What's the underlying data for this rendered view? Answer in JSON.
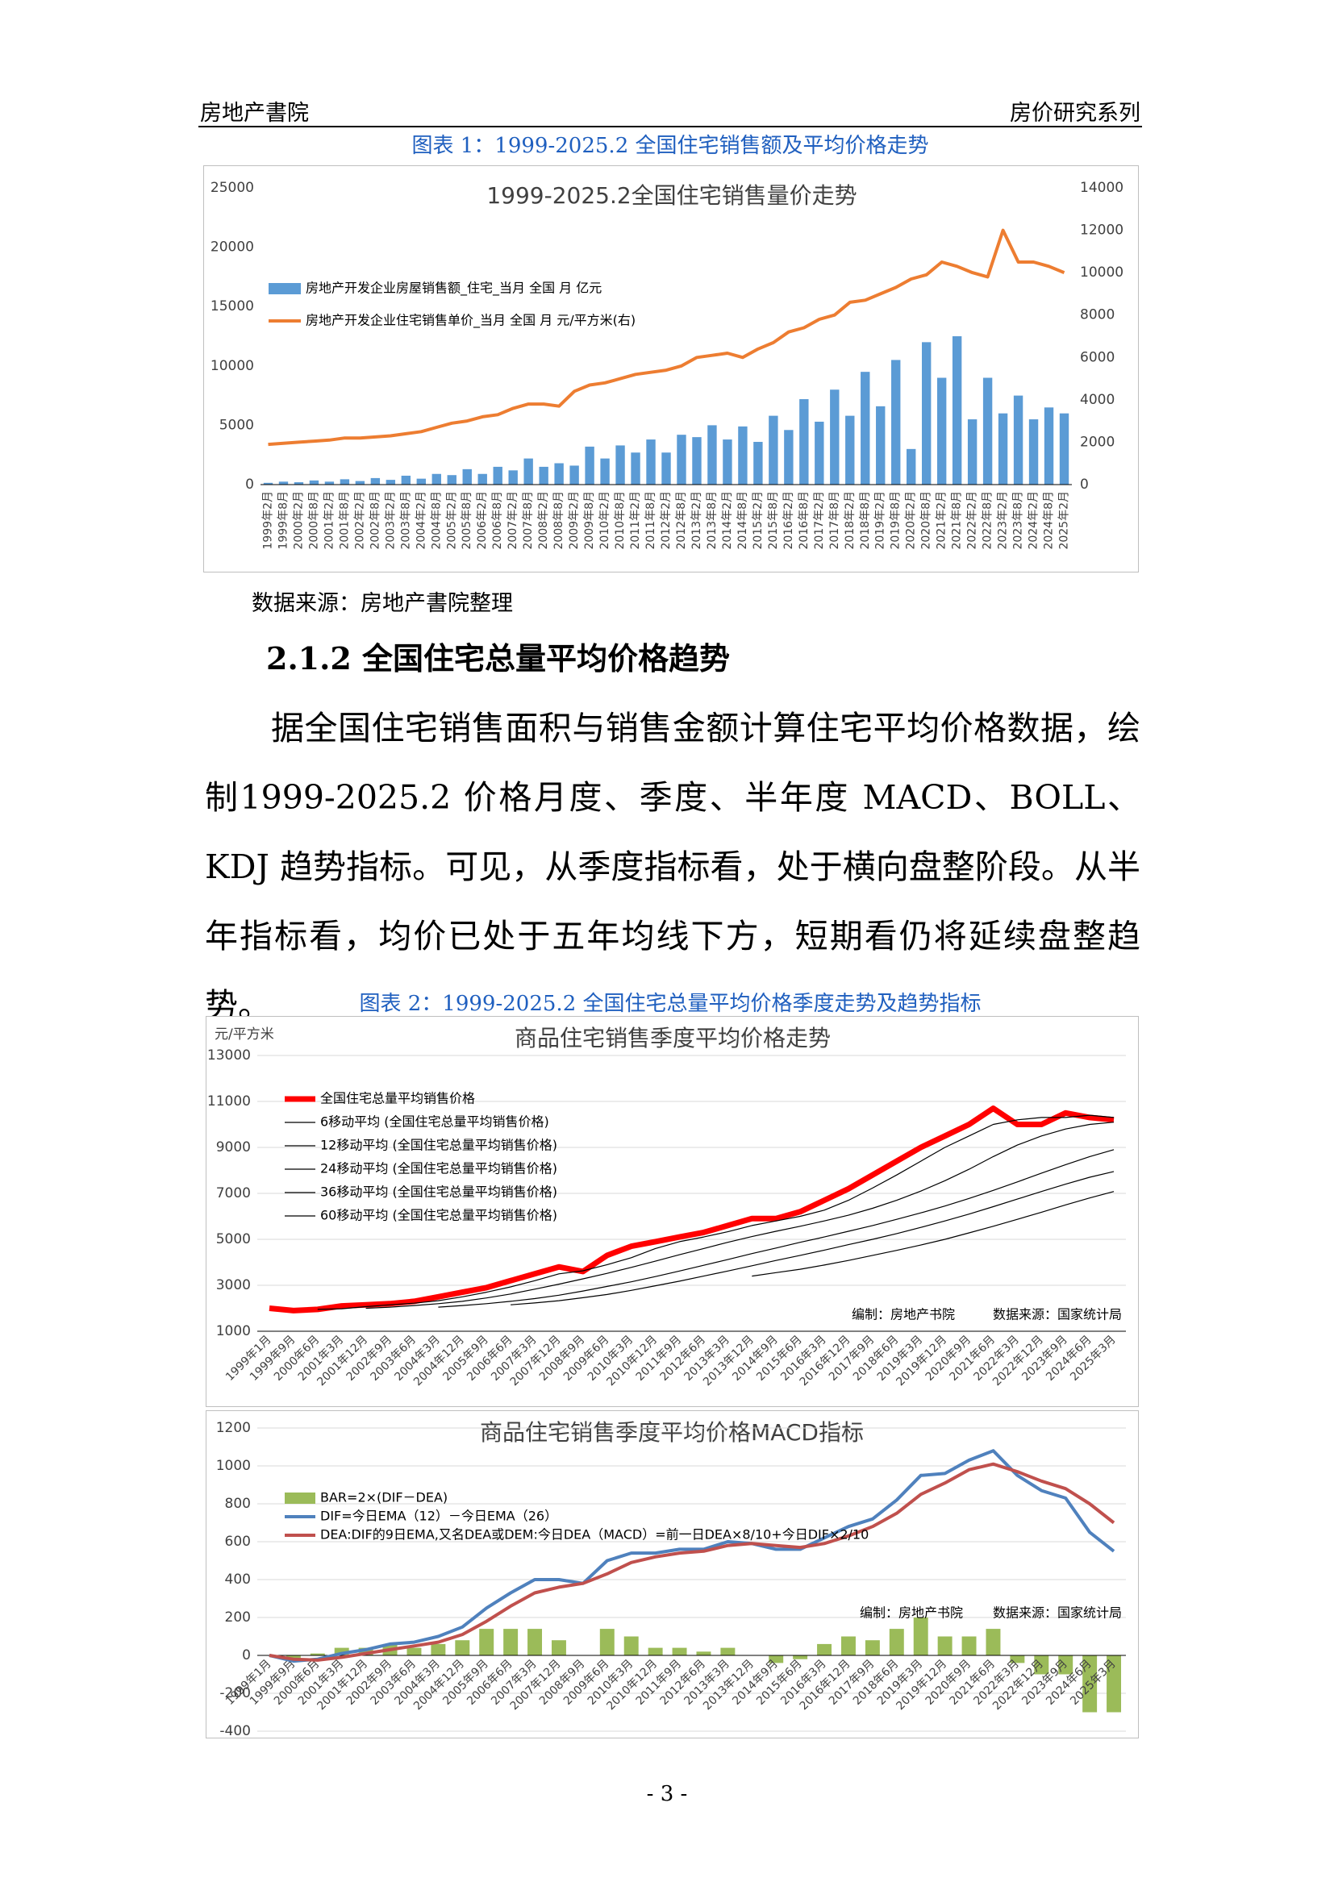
{
  "header": {
    "left": "房地产書院",
    "right": "房价研究系列"
  },
  "figure_1_caption": "图表 1：1999-2025.2 全国住宅销售额及平均价格走势",
  "source_note": "数据来源：房地产書院整理",
  "section": {
    "heading": "2.1.2 全国住宅总量平均价格趋势",
    "paragraph": "据全国住宅销售面积与销售金额计算住宅平均价格数据，绘制1999-2025.2 价格月度、季度、半年度 MACD、BOLL、KDJ 趋势指标。可见，从季度指标看，处于横向盘整阶段。从半年指标看，均价已处于五年均线下方，短期看仍将延续盘整趋势。"
  },
  "figure_2_caption": "图表 2：1999-2025.2 全国住宅总量平均价格季度走势及趋势指标",
  "page_number": "- 3 -",
  "chart_data": [
    {
      "type": "combo",
      "title": "1999-2025.2全国住宅销售量价走势",
      "legend": "upper left",
      "grid": false,
      "categories": [
        "1999年2月",
        "1999年8月",
        "2000年2月",
        "2000年8月",
        "2001年2月",
        "2001年8月",
        "2002年2月",
        "2002年8月",
        "2003年2月",
        "2003年8月",
        "2004年2月",
        "2004年8月",
        "2005年2月",
        "2005年8月",
        "2006年2月",
        "2006年8月",
        "2007年2月",
        "2007年8月",
        "2008年2月",
        "2008年8月",
        "2009年2月",
        "2009年8月",
        "2010年2月",
        "2010年8月",
        "2011年2月",
        "2011年8月",
        "2012年2月",
        "2012年8月",
        "2013年2月",
        "2013年8月",
        "2014年2月",
        "2014年8月",
        "2015年2月",
        "2015年8月",
        "2016年2月",
        "2016年8月",
        "2017年2月",
        "2017年8月",
        "2018年2月",
        "2018年8月",
        "2019年2月",
        "2019年8月",
        "2020年2月",
        "2020年8月",
        "2021年2月",
        "2021年8月",
        "2022年2月",
        "2022年8月",
        "2023年2月",
        "2023年8月",
        "2024年2月",
        "2024年8月",
        "2025年2月"
      ],
      "ylim": [
        0,
        25000
      ],
      "yticks": [
        0,
        5000,
        10000,
        15000,
        20000,
        25000
      ],
      "y2lim": [
        0,
        14000
      ],
      "y2ticks": [
        0,
        2000,
        4000,
        6000,
        8000,
        10000,
        12000,
        14000
      ],
      "series": [
        {
          "name": "房地产开发企业房屋销售额_住宅_当月 全国 月 亿元",
          "type": "bar",
          "color": "#5b9bd5",
          "values": [
            150,
            250,
            200,
            350,
            250,
            450,
            300,
            550,
            400,
            750,
            500,
            900,
            800,
            1300,
            900,
            1500,
            1200,
            2200,
            1500,
            1800,
            1600,
            3200,
            2200,
            3300,
            2700,
            3800,
            2700,
            4200,
            4000,
            5000,
            3800,
            4900,
            3600,
            5800,
            4600,
            7200,
            5300,
            8000,
            5800,
            9500,
            6600,
            10500,
            3000,
            12000,
            9000,
            12500,
            5500,
            9000,
            6000,
            7500,
            5500,
            6500,
            6000
          ]
        },
        {
          "name": "房地产开发企业住宅销售单价_当月 全国 月 元/平方米(右)",
          "type": "line",
          "axis": "y2",
          "color": "#ed7d31",
          "values": [
            1900,
            1950,
            2000,
            2050,
            2100,
            2200,
            2200,
            2250,
            2300,
            2400,
            2500,
            2700,
            2900,
            3000,
            3200,
            3300,
            3600,
            3800,
            3800,
            3700,
            4400,
            4700,
            4800,
            5000,
            5200,
            5300,
            5400,
            5600,
            6000,
            6100,
            6200,
            6000,
            6400,
            6700,
            7200,
            7400,
            7800,
            8000,
            8600,
            8700,
            9000,
            9300,
            9700,
            9900,
            10500,
            10300,
            10000,
            9800,
            12000,
            10500,
            10500,
            10300,
            10000
          ]
        }
      ]
    },
    {
      "type": "line",
      "title": "商品住宅销售季度平均价格走势",
      "y_label": "元/平方米",
      "legend": "upper left",
      "grid": true,
      "annotations": [
        "编制：房地产书院",
        "数据来源：国家统计局"
      ],
      "categories": [
        "1999年1月",
        "1999年9月",
        "2000年6月",
        "2001年3月",
        "2001年12月",
        "2002年9月",
        "2003年6月",
        "2004年3月",
        "2004年12月",
        "2005年9月",
        "2006年6月",
        "2007年3月",
        "2007年12月",
        "2008年9月",
        "2009年6月",
        "2010年3月",
        "2010年12月",
        "2011年9月",
        "2012年6月",
        "2013年3月",
        "2013年12月",
        "2014年9月",
        "2015年6月",
        "2016年3月",
        "2016年12月",
        "2017年9月",
        "2018年6月",
        "2019年3月",
        "2019年12月",
        "2020年9月",
        "2021年6月",
        "2022年3月",
        "2022年12月",
        "2023年9月",
        "2024年6月",
        "2025年3月"
      ],
      "ylim": [
        1000,
        13000
      ],
      "yticks": [
        1000,
        3000,
        5000,
        7000,
        9000,
        11000,
        13000
      ],
      "series": [
        {
          "name": "全国住宅总量平均销售价格",
          "color": "#ff0000",
          "values": [
            2000,
            1900,
            1950,
            2100,
            2150,
            2200,
            2300,
            2500,
            2700,
            2900,
            3200,
            3500,
            3800,
            3600,
            4300,
            4700,
            4900,
            5100,
            5300,
            5600,
            5900,
            5900,
            6200,
            6700,
            7200,
            7800,
            8400,
            9000,
            9500,
            10000,
            10700,
            10000,
            10000,
            10500,
            10300,
            10200
          ]
        },
        {
          "name": "6移动平均 (全国住宅总量平均销售价格)",
          "color": "#000000",
          "values": [
            null,
            null,
            1950,
            1980,
            2070,
            2150,
            2220,
            2330,
            2500,
            2700,
            2930,
            3200,
            3500,
            3630,
            3900,
            4200,
            4600,
            4900,
            5100,
            5330,
            5600,
            5800,
            6000,
            6270,
            6700,
            7230,
            7800,
            8400,
            9000,
            9500,
            10000,
            10200,
            10300,
            10300,
            10400,
            10300
          ]
        },
        {
          "name": "12移动平均 (全国住宅总量平均销售价格)",
          "color": "#000000",
          "values": [
            null,
            null,
            null,
            null,
            2000,
            2050,
            2120,
            2200,
            2300,
            2450,
            2620,
            2830,
            3050,
            3280,
            3520,
            3780,
            4050,
            4330,
            4600,
            4870,
            5120,
            5350,
            5570,
            5800,
            6050,
            6350,
            6700,
            7100,
            7550,
            8050,
            8600,
            9100,
            9500,
            9800,
            10000,
            10100
          ]
        },
        {
          "name": "24移动平均 (全国住宅总量平均销售价格)",
          "color": "#000000",
          "values": [
            null,
            null,
            null,
            null,
            null,
            null,
            null,
            2050,
            2120,
            2200,
            2300,
            2420,
            2570,
            2750,
            2950,
            3150,
            3380,
            3620,
            3870,
            4120,
            4380,
            4620,
            4870,
            5100,
            5350,
            5600,
            5870,
            6150,
            6450,
            6780,
            7130,
            7500,
            7880,
            8250,
            8600,
            8900
          ]
        },
        {
          "name": "36移动平均 (全国住宅总量平均销售价格)",
          "color": "#000000",
          "values": [
            null,
            null,
            null,
            null,
            null,
            null,
            null,
            null,
            null,
            null,
            2150,
            2230,
            2330,
            2460,
            2600,
            2780,
            2980,
            3180,
            3400,
            3620,
            3850,
            4080,
            4300,
            4530,
            4770,
            5000,
            5250,
            5520,
            5800,
            6100,
            6420,
            6750,
            7080,
            7400,
            7700,
            7950
          ]
        },
        {
          "name": "60移动平均 (全国住宅总量平均销售价格)",
          "color": "#000000",
          "values": [
            null,
            null,
            null,
            null,
            null,
            null,
            null,
            null,
            null,
            null,
            null,
            null,
            null,
            null,
            null,
            null,
            null,
            null,
            null,
            null,
            3400,
            3550,
            3700,
            3880,
            4080,
            4300,
            4520,
            4750,
            5000,
            5280,
            5570,
            5870,
            6180,
            6500,
            6800,
            7080
          ]
        }
      ]
    },
    {
      "type": "combo",
      "title": "商品住宅销售季度平均价格MACD指标",
      "legend": "upper left",
      "grid": true,
      "annotations": [
        "编制：房地产书院",
        "数据来源：国家统计局"
      ],
      "categories": [
        "1999年1月",
        "1999年9月",
        "2000年6月",
        "2001年3月",
        "2001年12月",
        "2002年9月",
        "2003年6月",
        "2004年3月",
        "2004年12月",
        "2005年9月",
        "2006年6月",
        "2007年3月",
        "2007年12月",
        "2008年9月",
        "2009年6月",
        "2010年3月",
        "2010年12月",
        "2011年9月",
        "2012年6月",
        "2013年3月",
        "2013年12月",
        "2014年9月",
        "2015年6月",
        "2016年3月",
        "2016年12月",
        "2017年9月",
        "2018年6月",
        "2019年3月",
        "2019年12月",
        "2020年9月",
        "2021年6月",
        "2022年3月",
        "2022年12月",
        "2023年9月",
        "2024年6月",
        "2025年3月"
      ],
      "ylim": [
        -400,
        1200
      ],
      "yticks": [
        -400,
        -200,
        0,
        200,
        400,
        600,
        800,
        1000,
        1200
      ],
      "series": [
        {
          "name": "BAR=2×(DIF－DEA)",
          "type": "bar",
          "color": "#9bbb59",
          "values": [
            0,
            -20,
            10,
            40,
            40,
            60,
            40,
            60,
            80,
            140,
            140,
            140,
            80,
            0,
            140,
            100,
            40,
            40,
            20,
            40,
            0,
            -40,
            -20,
            60,
            100,
            80,
            140,
            200,
            100,
            100,
            140,
            -40,
            -100,
            -100,
            -300,
            -300
          ]
        },
        {
          "name": "DIF=今日EMA（12）－今日EMA（26）",
          "type": "line",
          "color": "#4f81bd",
          "values": [
            0,
            -30,
            -20,
            10,
            30,
            60,
            70,
            100,
            150,
            250,
            330,
            400,
            400,
            380,
            500,
            540,
            540,
            560,
            560,
            600,
            590,
            560,
            560,
            620,
            680,
            720,
            820,
            950,
            960,
            1030,
            1080,
            950,
            870,
            830,
            650,
            550
          ]
        },
        {
          "name": "DEA:DIF的9日EMA,又名DEA或DEM:今日DEA（MACD）=前一日DEA×8/10+今日DIF×2/10",
          "type": "line",
          "color": "#c0504d",
          "values": [
            0,
            -20,
            -25,
            -10,
            10,
            30,
            50,
            70,
            110,
            180,
            260,
            330,
            360,
            380,
            430,
            490,
            520,
            540,
            550,
            580,
            590,
            580,
            570,
            590,
            630,
            680,
            750,
            850,
            910,
            980,
            1010,
            970,
            920,
            880,
            800,
            700
          ]
        }
      ]
    }
  ]
}
